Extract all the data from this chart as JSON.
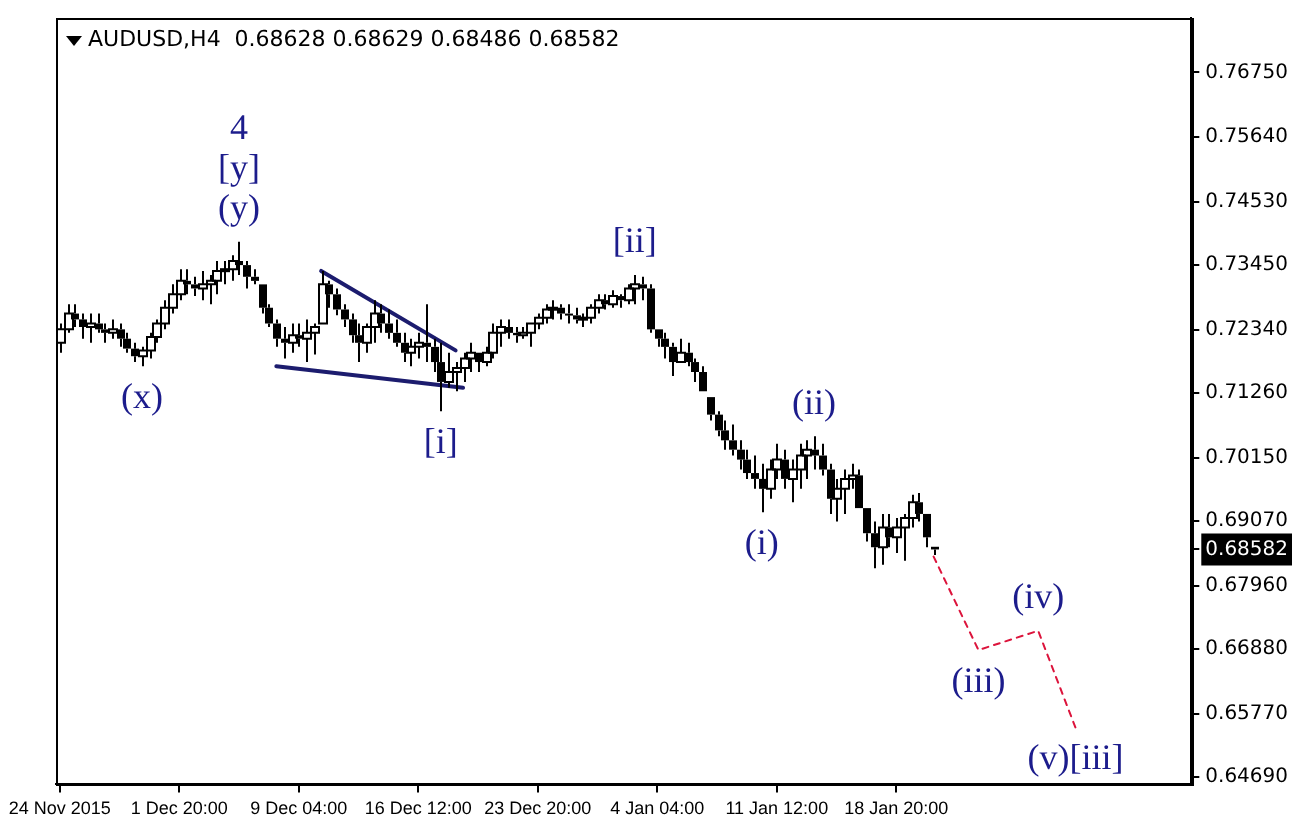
{
  "chart_data": {
    "type": "candlestick",
    "title": "AUDUSD,H4  0.68628 0.68629 0.68486 0.68582",
    "color": "#000000",
    "categories": [
      "24 Nov 2015",
      null,
      null,
      null,
      null,
      null,
      null,
      null,
      null,
      null,
      null,
      null,
      null,
      null,
      null,
      null,
      "1 Dec 20:00",
      null,
      null,
      null,
      null,
      null,
      null,
      null,
      null,
      null,
      null,
      null,
      null,
      null,
      null,
      null,
      "9 Dec 04:00",
      null,
      null,
      null,
      null,
      null,
      null,
      null,
      null,
      null,
      null,
      null,
      null,
      null,
      null,
      null,
      "16 Dec 12:00",
      null,
      null,
      null,
      null,
      null,
      null,
      null,
      null,
      null,
      null,
      null,
      null,
      null,
      null,
      null,
      "23 Dec 20:00",
      null,
      null,
      null,
      null,
      null,
      null,
      null,
      null,
      null,
      null,
      null,
      null,
      null,
      null,
      null,
      "4 Jan 04:00",
      null,
      null,
      null,
      null,
      null,
      null,
      null,
      null,
      null,
      null,
      null,
      null,
      null,
      null,
      null,
      "11 Jan 12:00",
      null,
      null,
      null,
      null,
      null,
      null,
      null,
      null,
      null,
      null,
      null,
      null,
      null,
      null,
      null,
      "18 Jan 20:00",
      null,
      null,
      null,
      null,
      null,
      null,
      null,
      null,
      null,
      null,
      null,
      null,
      null,
      null,
      null,
      null,
      null,
      null,
      null,
      null,
      null,
      null,
      null,
      null,
      null,
      null,
      null,
      null,
      null,
      null,
      null,
      null,
      null,
      null,
      null,
      null,
      null,
      null,
      null
    ],
    "ohlc": [
      [
        0.7212,
        0.7245,
        0.7195,
        0.7235
      ],
      [
        0.7235,
        0.7278,
        0.7229,
        0.7262
      ],
      [
        0.7262,
        0.7278,
        0.7239,
        0.7252
      ],
      [
        0.7252,
        0.7262,
        0.7219,
        0.7239
      ],
      [
        0.7239,
        0.7262,
        0.7212,
        0.7245
      ],
      [
        0.7245,
        0.7262,
        0.7229,
        0.7235
      ],
      [
        0.7235,
        0.7245,
        0.7212,
        0.7229
      ],
      [
        0.7229,
        0.7252,
        0.7219,
        0.7235
      ],
      [
        0.7235,
        0.7245,
        0.7205,
        0.7219
      ],
      [
        0.7219,
        0.7229,
        0.7195,
        0.7202
      ],
      [
        0.7202,
        0.7212,
        0.7179,
        0.7189
      ],
      [
        0.7189,
        0.7205,
        0.7172,
        0.7199
      ],
      [
        0.7199,
        0.7229,
        0.7185,
        0.7222
      ],
      [
        0.7222,
        0.7252,
        0.7212,
        0.7245
      ],
      [
        0.7245,
        0.7285,
        0.7235,
        0.7272
      ],
      [
        0.7272,
        0.7312,
        0.7262,
        0.7295
      ],
      [
        0.7295,
        0.7338,
        0.7285,
        0.7318
      ],
      [
        0.7318,
        0.7338,
        0.7295,
        0.7312
      ],
      [
        0.7312,
        0.7325,
        0.7292,
        0.7305
      ],
      [
        0.7305,
        0.7335,
        0.7285,
        0.7312
      ],
      [
        0.7312,
        0.7328,
        0.7278,
        0.7318
      ],
      [
        0.7318,
        0.7352,
        0.7295,
        0.7335
      ],
      [
        0.7335,
        0.7352,
        0.7312,
        0.7338
      ],
      [
        0.7338,
        0.7362,
        0.7318,
        0.7352
      ],
      [
        0.7352,
        0.7385,
        0.7328,
        0.7345
      ],
      [
        0.7345,
        0.7352,
        0.7305,
        0.7325
      ],
      [
        0.7325,
        0.7338,
        0.7312,
        0.7318
      ],
      [
        0.7312,
        0.7312,
        0.7262,
        0.7272
      ],
      [
        0.7272,
        0.7278,
        0.7239,
        0.7245
      ],
      [
        0.7245,
        0.7252,
        0.7205,
        0.7219
      ],
      [
        0.7219,
        0.7239,
        0.7185,
        0.7212
      ],
      [
        0.7212,
        0.7245,
        0.7195,
        0.7225
      ],
      [
        0.7225,
        0.7245,
        0.7205,
        0.7219
      ],
      [
        0.7219,
        0.7252,
        0.7179,
        0.7229
      ],
      [
        0.7229,
        0.7245,
        0.7192,
        0.7239
      ],
      [
        0.7245,
        0.7335,
        0.7245,
        0.7312
      ],
      [
        0.7312,
        0.7318,
        0.7272,
        0.7295
      ],
      [
        0.7295,
        0.7305,
        0.7259,
        0.7269
      ],
      [
        0.7269,
        0.7278,
        0.7239,
        0.7252
      ],
      [
        0.7252,
        0.7262,
        0.7212,
        0.7225
      ],
      [
        0.7225,
        0.7245,
        0.7179,
        0.7212
      ],
      [
        0.7212,
        0.7245,
        0.7195,
        0.7239
      ],
      [
        0.7239,
        0.7285,
        0.7212,
        0.7262
      ],
      [
        0.7262,
        0.7278,
        0.7229,
        0.7245
      ],
      [
        0.7245,
        0.7269,
        0.7219,
        0.7229
      ],
      [
        0.7229,
        0.7252,
        0.7205,
        0.7212
      ],
      [
        0.7212,
        0.7229,
        0.7179,
        0.7195
      ],
      [
        0.7195,
        0.7219,
        0.7172,
        0.7205
      ],
      [
        0.7205,
        0.7229,
        0.7185,
        0.7212
      ],
      [
        0.7212,
        0.7278,
        0.7179,
        0.7205
      ],
      [
        0.7205,
        0.7219,
        0.7162,
        0.7179
      ],
      [
        0.7179,
        0.7212,
        0.7095,
        0.7145
      ],
      [
        0.7145,
        0.7195,
        0.7135,
        0.7162
      ],
      [
        0.7162,
        0.7179,
        0.7129,
        0.7169
      ],
      [
        0.7169,
        0.7195,
        0.7145,
        0.7185
      ],
      [
        0.7185,
        0.7212,
        0.7162,
        0.7195
      ],
      [
        0.7195,
        0.7195,
        0.7162,
        0.7179
      ],
      [
        0.7179,
        0.7205,
        0.7172,
        0.7195
      ],
      [
        0.7195,
        0.7245,
        0.7185,
        0.7229
      ],
      [
        0.7229,
        0.7252,
        0.7205,
        0.7239
      ],
      [
        0.7239,
        0.7252,
        0.7219,
        0.7229
      ],
      [
        0.7229,
        0.7239,
        0.7212,
        0.7225
      ],
      [
        0.7225,
        0.7239,
        0.7219,
        0.7229
      ],
      [
        0.7229,
        0.7245,
        0.7205,
        0.7245
      ],
      [
        0.7245,
        0.7262,
        0.7235,
        0.7255
      ],
      [
        0.7255,
        0.7278,
        0.7245,
        0.7269
      ],
      [
        0.7269,
        0.7285,
        0.7252,
        0.7272
      ],
      [
        0.7272,
        0.7278,
        0.7252,
        0.7262
      ],
      [
        0.7262,
        0.7278,
        0.7245,
        0.7259
      ],
      [
        0.7259,
        0.7272,
        0.7245,
        0.7252
      ],
      [
        0.7252,
        0.7262,
        0.7239,
        0.7255
      ],
      [
        0.7255,
        0.7278,
        0.7245,
        0.7272
      ],
      [
        0.7272,
        0.7295,
        0.7262,
        0.7285
      ],
      [
        0.7285,
        0.7295,
        0.7269,
        0.7278
      ],
      [
        0.7278,
        0.7302,
        0.7272,
        0.7292
      ],
      [
        0.7292,
        0.7295,
        0.7272,
        0.7285
      ],
      [
        0.7285,
        0.7312,
        0.7278,
        0.7305
      ],
      [
        0.7305,
        0.7328,
        0.7278,
        0.7312
      ],
      [
        0.7312,
        0.7325,
        0.7285,
        0.7305
      ],
      [
        0.7305,
        0.7312,
        0.7229,
        0.7235
      ],
      [
        0.7235,
        0.7235,
        0.7205,
        0.7219
      ],
      [
        0.7219,
        0.7229,
        0.7185,
        0.7205
      ],
      [
        0.7205,
        0.7212,
        0.7155,
        0.7179
      ],
      [
        0.7179,
        0.7219,
        0.7179,
        0.7195
      ],
      [
        0.7195,
        0.7212,
        0.7172,
        0.7179
      ],
      [
        0.7179,
        0.7185,
        0.7145,
        0.7162
      ],
      [
        0.7162,
        0.7172,
        0.7129,
        0.7129
      ],
      [
        0.7119,
        0.7119,
        0.7079,
        0.7089
      ],
      [
        0.7089,
        0.7095,
        0.7052,
        0.7062
      ],
      [
        0.7062,
        0.7079,
        0.7029,
        0.7045
      ],
      [
        0.7045,
        0.7072,
        0.7019,
        0.7029
      ],
      [
        0.7029,
        0.7045,
        0.6995,
        0.7012
      ],
      [
        0.7012,
        0.7029,
        0.6979,
        0.6989
      ],
      [
        0.6989,
        0.7019,
        0.6962,
        0.6979
      ],
      [
        0.6979,
        0.7005,
        0.6922,
        0.6962
      ],
      [
        0.6962,
        0.7012,
        0.6945,
        0.6995
      ],
      [
        0.6995,
        0.7039,
        0.6979,
        0.7012
      ],
      [
        0.7012,
        0.7029,
        0.6962,
        0.6979
      ],
      [
        0.6979,
        0.7012,
        0.6939,
        0.6995
      ],
      [
        0.6995,
        0.7039,
        0.6962,
        0.7019
      ],
      [
        0.7019,
        0.7045,
        0.6979,
        0.7029
      ],
      [
        0.7029,
        0.7052,
        0.6995,
        0.7019
      ],
      [
        0.7019,
        0.7039,
        0.6985,
        0.6995
      ],
      [
        0.6995,
        0.7005,
        0.6919,
        0.6945
      ],
      [
        0.6945,
        0.6979,
        0.6906,
        0.6962
      ],
      [
        0.6962,
        0.6995,
        0.6919,
        0.6979
      ],
      [
        0.6979,
        0.7005,
        0.6962,
        0.6985
      ],
      [
        0.6985,
        0.6995,
        0.6929,
        0.6929
      ],
      [
        0.6929,
        0.6929,
        0.6872,
        0.6886
      ],
      [
        0.6886,
        0.6906,
        0.6826,
        0.6862
      ],
      [
        0.6862,
        0.6919,
        0.6832,
        0.6896
      ],
      [
        0.6896,
        0.6919,
        0.6862,
        0.6879
      ],
      [
        0.6879,
        0.6912,
        0.6852,
        0.6896
      ],
      [
        0.6896,
        0.6919,
        0.6839,
        0.6912
      ],
      [
        0.6912,
        0.6952,
        0.6896,
        0.6939
      ],
      [
        0.6939,
        0.6955,
        0.6906,
        0.6919
      ],
      [
        0.6919,
        0.6919,
        0.6862,
        0.6879
      ],
      [
        0.68628,
        0.68629,
        0.68486,
        0.68582
      ],
      null,
      null,
      null,
      null,
      null,
      null,
      null,
      null,
      null,
      null,
      null,
      null,
      null,
      null,
      null,
      null,
      null,
      null,
      null,
      null,
      null,
      null,
      null,
      null,
      null,
      null,
      null,
      null,
      null,
      null,
      null,
      null,
      null,
      null
    ],
    "value_labels": [
      null,
      null,
      null,
      null,
      null,
      null,
      null,
      null,
      null,
      null,
      null,
      "(x)",
      null,
      null,
      null,
      null,
      null,
      null,
      null,
      null,
      null,
      null,
      null,
      null,
      "4\n[y]\n(y)",
      null,
      null,
      null,
      null,
      null,
      null,
      null,
      null,
      null,
      null,
      null,
      null,
      null,
      null,
      null,
      null,
      null,
      null,
      null,
      null,
      null,
      null,
      null,
      null,
      null,
      null,
      "[i]",
      null,
      null,
      null,
      null,
      null,
      null,
      null,
      null,
      null,
      null,
      null,
      null,
      null,
      null,
      null,
      null,
      null,
      null,
      null,
      null,
      null,
      null,
      null,
      null,
      null,
      "[ii]",
      null,
      null,
      null,
      null,
      null,
      null,
      null,
      null,
      null,
      null,
      null,
      null,
      null,
      null,
      null,
      null,
      "(i)",
      null,
      null,
      null,
      null,
      null,
      null,
      "(ii)",
      null,
      null,
      null,
      null,
      null,
      null,
      null,
      null,
      null,
      null,
      null,
      null,
      null,
      null,
      null,
      null,
      null,
      null,
      null,
      null,
      null,
      null,
      null,
      null,
      null,
      null,
      null,
      null,
      null,
      null,
      null,
      null,
      null,
      null,
      null,
      null,
      null,
      null,
      null,
      null,
      null,
      null,
      null,
      null,
      null,
      null,
      null,
      null,
      null,
      null
    ],
    "series": [
      {
        "type": "line",
        "color": "#1c1c6e",
        "values": [
          null,
          null,
          null,
          null,
          null,
          null,
          null,
          null,
          null,
          null,
          null,
          null,
          null,
          null,
          null,
          null,
          null,
          null,
          null,
          null,
          null,
          null,
          null,
          null,
          null,
          null,
          null,
          null,
          null,
          null,
          null,
          null,
          null,
          null,
          null,
          0.7335,
          null,
          null,
          null,
          null,
          null,
          null,
          null,
          null,
          null,
          null,
          null,
          null,
          null,
          null,
          null,
          null,
          null,
          0.7199,
          null,
          null,
          null,
          null,
          null,
          null,
          null,
          null,
          null,
          null,
          null,
          null,
          null,
          null,
          null,
          null,
          null,
          null,
          null,
          null,
          null,
          null,
          null,
          null,
          null,
          null,
          null,
          null,
          null,
          null,
          null,
          null,
          null,
          null,
          null,
          null,
          null,
          null,
          null,
          null,
          null,
          null,
          null,
          null,
          null,
          null,
          null,
          null,
          null,
          null,
          null,
          null,
          null,
          null,
          null,
          null,
          null,
          null,
          null,
          null,
          null,
          null,
          null,
          null,
          null,
          null,
          null,
          null,
          null,
          null,
          null,
          null,
          null,
          null,
          null,
          null,
          null,
          null,
          null,
          null,
          null,
          null,
          null,
          null,
          null,
          null,
          null,
          null,
          null,
          null,
          null,
          null,
          null,
          null,
          null,
          null,
          null,
          null
        ]
      },
      {
        "type": "line",
        "color": "#1c1c6e",
        "values": [
          null,
          null,
          null,
          null,
          null,
          null,
          null,
          null,
          null,
          null,
          null,
          null,
          null,
          null,
          null,
          null,
          null,
          null,
          null,
          null,
          null,
          null,
          null,
          null,
          null,
          null,
          null,
          null,
          null,
          0.7172,
          null,
          null,
          null,
          null,
          null,
          null,
          null,
          null,
          null,
          null,
          null,
          null,
          null,
          null,
          null,
          null,
          null,
          null,
          null,
          null,
          null,
          null,
          null,
          null,
          0.7135,
          null,
          null,
          null,
          null,
          null,
          null,
          null,
          null,
          null,
          null,
          null,
          null,
          null,
          null,
          null,
          null,
          null,
          null,
          null,
          null,
          null,
          null,
          null,
          null,
          null,
          null,
          null,
          null,
          null,
          null,
          null,
          null,
          null,
          null,
          null,
          null,
          null,
          null,
          null,
          null,
          null,
          null,
          null,
          null,
          null,
          null,
          null,
          null,
          null,
          null,
          null,
          null,
          null,
          null,
          null,
          null,
          null,
          null,
          null,
          null,
          null,
          null,
          null,
          null,
          null,
          null,
          null,
          null,
          null,
          null,
          null,
          null,
          null,
          null,
          null,
          null,
          null,
          null,
          null,
          null,
          null,
          null,
          null,
          null,
          null,
          null,
          null,
          null,
          null,
          null,
          null,
          null,
          null,
          null,
          null,
          null,
          null
        ]
      },
      {
        "type": "line",
        "color": "#dc143c",
        "line_style": "dashed",
        "values": [
          null,
          null,
          null,
          null,
          null,
          null,
          null,
          null,
          null,
          null,
          null,
          null,
          null,
          null,
          null,
          null,
          null,
          null,
          null,
          null,
          null,
          null,
          null,
          null,
          null,
          null,
          null,
          null,
          null,
          null,
          null,
          null,
          null,
          null,
          null,
          null,
          null,
          null,
          null,
          null,
          null,
          null,
          null,
          null,
          null,
          null,
          null,
          null,
          null,
          null,
          null,
          null,
          null,
          null,
          null,
          null,
          null,
          null,
          null,
          null,
          null,
          null,
          null,
          null,
          null,
          null,
          null,
          null,
          null,
          null,
          null,
          null,
          null,
          null,
          null,
          null,
          null,
          null,
          null,
          null,
          null,
          null,
          null,
          null,
          null,
          null,
          null,
          null,
          null,
          null,
          null,
          null,
          null,
          null,
          null,
          null,
          null,
          null,
          null,
          null,
          null,
          null,
          null,
          null,
          null,
          null,
          null,
          null,
          null,
          null,
          null,
          null,
          null,
          null,
          null,
          null,
          null,
          0.6846,
          null,
          null,
          null,
          null,
          null,
          0.6686,
          null,
          null,
          null,
          null,
          null,
          null,
          null,
          0.6719,
          null,
          null,
          null,
          null,
          0.6553,
          null,
          null,
          null,
          null,
          null,
          null,
          null,
          null,
          null,
          null,
          null,
          null,
          null,
          null,
          null
        ],
        "value_labels": [
          null,
          null,
          null,
          null,
          null,
          null,
          null,
          null,
          null,
          null,
          null,
          null,
          null,
          null,
          null,
          null,
          null,
          null,
          null,
          null,
          null,
          null,
          null,
          null,
          null,
          null,
          null,
          null,
          null,
          null,
          null,
          null,
          null,
          null,
          null,
          null,
          null,
          null,
          null,
          null,
          null,
          null,
          null,
          null,
          null,
          null,
          null,
          null,
          null,
          null,
          null,
          null,
          null,
          null,
          null,
          null,
          null,
          null,
          null,
          null,
          null,
          null,
          null,
          null,
          null,
          null,
          null,
          null,
          null,
          null,
          null,
          null,
          null,
          null,
          null,
          null,
          null,
          null,
          null,
          null,
          null,
          null,
          null,
          null,
          null,
          null,
          null,
          null,
          null,
          null,
          null,
          null,
          null,
          null,
          null,
          null,
          null,
          null,
          null,
          null,
          null,
          null,
          null,
          null,
          null,
          null,
          null,
          null,
          null,
          null,
          null,
          null,
          null,
          null,
          null,
          null,
          null,
          null,
          null,
          null,
          null,
          null,
          null,
          "(iii)",
          null,
          null,
          null,
          null,
          null,
          null,
          null,
          "(iv)",
          null,
          null,
          null,
          null,
          "(v)[iii]",
          null,
          null,
          null,
          null,
          null,
          null,
          null,
          null,
          null,
          null,
          null,
          null,
          null,
          null,
          null
        ]
      }
    ],
    "ylim": [
      0.6456,
      0.7768
    ],
    "yticks": [
      {
        "value": 0.7675,
        "label": "0.76750"
      },
      {
        "value": 0.7564,
        "label": "0.75640"
      },
      {
        "value": 0.7453,
        "label": "0.74530"
      },
      {
        "value": 0.7345,
        "label": "0.73450"
      },
      {
        "value": 0.7234,
        "label": "0.72340"
      },
      {
        "value": 0.7126,
        "label": "0.71260"
      },
      {
        "value": 0.7015,
        "label": "0.70150"
      },
      {
        "value": 0.6907,
        "label": "0.69070"
      },
      {
        "value": 0.68582,
        "label": "0.68582"
      },
      {
        "value": 0.6796,
        "label": "0.67960"
      },
      {
        "value": 0.6688,
        "label": "0.66880"
      },
      {
        "value": 0.6577,
        "label": "0.65770"
      },
      {
        "value": 0.6469,
        "label": "0.64690"
      }
    ],
    "legend": false,
    "grid": false
  }
}
